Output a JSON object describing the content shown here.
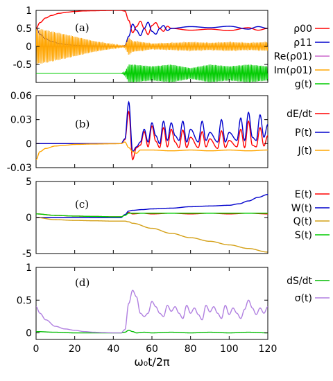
{
  "figure": {
    "xlabel": "ω₀t/2π",
    "xlim": [
      0,
      120
    ],
    "xticks": [
      "0",
      "20",
      "40",
      "60",
      "80",
      "100",
      "120"
    ]
  },
  "chart_data": [
    {
      "type": "line",
      "panel_label": "(a)",
      "ylim": [
        -1,
        1
      ],
      "yticks": [
        "1",
        "0.5",
        "0",
        "-0.5"
      ],
      "legend_placement": "right",
      "series": [
        {
          "name": "ρ00",
          "color": "#ff0000",
          "x": [
            0,
            2,
            5,
            8,
            12,
            16,
            20,
            25,
            30,
            35,
            40,
            44,
            46,
            48,
            50,
            52,
            54,
            56,
            58,
            60,
            62,
            64,
            66,
            68,
            70,
            80,
            90,
            100,
            110,
            115,
            120
          ],
          "y": [
            0.5,
            0.66,
            0.79,
            0.86,
            0.92,
            0.95,
            0.97,
            0.985,
            0.99,
            0.995,
            0.998,
            0.999,
            0.98,
            0.72,
            0.38,
            0.55,
            0.7,
            0.5,
            0.33,
            0.58,
            0.66,
            0.5,
            0.42,
            0.56,
            0.5,
            0.45,
            0.48,
            0.44,
            0.52,
            0.45,
            0.5
          ]
        },
        {
          "name": "ρ11",
          "color": "#0000cc",
          "x": [
            0,
            2,
            5,
            8,
            12,
            16,
            20,
            25,
            30,
            35,
            40,
            44,
            46,
            48,
            50,
            52,
            54,
            56,
            58,
            60,
            62,
            64,
            66,
            68,
            70,
            80,
            90,
            100,
            110,
            115,
            120
          ],
          "y": [
            0.5,
            0.34,
            0.21,
            0.14,
            0.08,
            0.05,
            0.03,
            0.015,
            0.01,
            0.005,
            0.002,
            0.001,
            0.02,
            0.28,
            0.62,
            0.45,
            0.3,
            0.5,
            0.67,
            0.42,
            0.34,
            0.5,
            0.58,
            0.44,
            0.5,
            0.55,
            0.52,
            0.56,
            0.48,
            0.55,
            0.5
          ]
        },
        {
          "name": "Re(ρ01)",
          "color": "#cc66cc",
          "x": [
            0,
            120
          ],
          "y": [
            0,
            0
          ]
        },
        {
          "name": "Im(ρ01)",
          "color": "#ffa500",
          "envelope": {
            "x": [
              0,
              5,
              10,
              20,
              30,
              40,
              44,
              46,
              48,
              50,
              55,
              60,
              70,
              80,
              90,
              100,
              110,
              120
            ],
            "amp": [
              0.5,
              0.46,
              0.4,
              0.28,
              0.15,
              0.06,
              0.03,
              0.03,
              0.25,
              0.15,
              0.12,
              0.08,
              0.1,
              0.12,
              0.1,
              0.12,
              0.1,
              0.12
            ]
          }
        },
        {
          "name": "g(t)",
          "color": "#00cc00",
          "baseline": -0.75,
          "envelope": {
            "x": [
              0,
              44,
              46,
              48,
              50,
              60,
              70,
              80,
              90,
              100,
              110,
              120
            ],
            "amp": [
              0,
              0,
              0.05,
              0.25,
              0.25,
              0.2,
              0.25,
              0.15,
              0.25,
              0.2,
              0.25,
              0.2
            ]
          }
        }
      ]
    },
    {
      "type": "line",
      "panel_label": "(b)",
      "ylim": [
        -0.03,
        0.06
      ],
      "yticks": [
        "0.06",
        "0.03",
        "0",
        "-0.03"
      ],
      "legend_placement": "right",
      "series": [
        {
          "name": "dE/dt",
          "color": "#ff0000",
          "x": [
            0,
            10,
            20,
            30,
            40,
            44,
            46,
            48,
            50,
            52,
            54,
            56,
            58,
            60,
            62,
            64,
            66,
            68,
            70,
            72,
            74,
            76,
            78,
            80,
            84,
            86,
            88,
            90,
            94,
            96,
            98,
            100,
            104,
            106,
            108,
            110,
            112,
            114,
            116,
            118,
            120
          ],
          "y": [
            0,
            0,
            0,
            0,
            0,
            0.0,
            0.005,
            0.04,
            -0.02,
            -0.005,
            -0.002,
            0.015,
            -0.004,
            0.022,
            0.003,
            -0.005,
            0.02,
            -0.004,
            0.018,
            0.002,
            -0.005,
            0.017,
            -0.005,
            0.008,
            -0.005,
            0.015,
            -0.004,
            0.006,
            -0.006,
            0.016,
            -0.005,
            0.004,
            -0.004,
            0.018,
            -0.005,
            0.028,
            -0.002,
            -0.004,
            0.02,
            -0.003,
            0.01
          ]
        },
        {
          "name": "P(t)",
          "color": "#0000cc",
          "x": [
            0,
            10,
            20,
            30,
            40,
            44,
            46,
            48,
            50,
            52,
            54,
            56,
            58,
            60,
            62,
            64,
            66,
            68,
            70,
            72,
            74,
            76,
            78,
            80,
            84,
            86,
            88,
            90,
            94,
            96,
            98,
            100,
            104,
            106,
            108,
            110,
            112,
            114,
            116,
            118,
            120
          ],
          "y": [
            0,
            0,
            0,
            0,
            0,
            0.0,
            0.006,
            0.052,
            -0.01,
            -0.004,
            0.002,
            0.018,
            0.002,
            0.026,
            0.01,
            0.0,
            0.028,
            0.004,
            0.026,
            0.01,
            0.004,
            0.028,
            0.002,
            0.018,
            0.002,
            0.028,
            0.004,
            0.014,
            0.002,
            0.03,
            0.002,
            0.014,
            0.004,
            0.032,
            0.004,
            0.039,
            0.008,
            0.004,
            0.036,
            0.008,
            0.024
          ]
        },
        {
          "name": "J(t)",
          "color": "#ffa500",
          "x": [
            0,
            2,
            5,
            10,
            15,
            20,
            30,
            40,
            44,
            46,
            48,
            50,
            52,
            54,
            60,
            70,
            80,
            90,
            100,
            110,
            120
          ],
          "y": [
            -0.02,
            -0.01,
            -0.006,
            -0.003,
            -0.002,
            -0.001,
            -0.0005,
            -0.0002,
            0.0,
            0.002,
            -0.005,
            -0.01,
            -0.012,
            -0.008,
            -0.008,
            -0.009,
            -0.008,
            -0.009,
            -0.008,
            -0.009,
            -0.008
          ]
        }
      ]
    },
    {
      "type": "line",
      "panel_label": "(c)",
      "ylim": [
        -5,
        5
      ],
      "yticks": [
        "5",
        "0",
        "-5"
      ],
      "legend_placement": "right",
      "series": [
        {
          "name": "E(t)",
          "color": "#ff0000",
          "x": [
            0,
            10,
            20,
            30,
            40,
            44,
            46,
            48,
            50,
            55,
            60,
            70,
            80,
            90,
            100,
            110,
            120
          ],
          "y": [
            0.5,
            0.3,
            0.2,
            0.15,
            0.1,
            0.1,
            0.3,
            0.7,
            0.5,
            0.6,
            0.5,
            0.6,
            0.5,
            0.6,
            0.5,
            0.6,
            0.5
          ]
        },
        {
          "name": "W(t)",
          "color": "#0000cc",
          "x": [
            0,
            10,
            20,
            30,
            40,
            44,
            46,
            48,
            50,
            55,
            60,
            70,
            80,
            90,
            100,
            105,
            110,
            115,
            120
          ],
          "y": [
            0,
            0,
            0,
            0,
            0,
            0,
            0.4,
            0.9,
            1.0,
            1.1,
            1.2,
            1.3,
            1.5,
            1.6,
            1.7,
            1.9,
            2.3,
            2.8,
            3.2
          ]
        },
        {
          "name": "Q(t)",
          "color": "#d4a017",
          "x": [
            0,
            10,
            20,
            30,
            40,
            44,
            46,
            48,
            50,
            60,
            70,
            80,
            90,
            100,
            110,
            120
          ],
          "y": [
            0,
            -0.3,
            -0.4,
            -0.45,
            -0.5,
            -0.5,
            -0.5,
            -0.6,
            -0.8,
            -1.5,
            -2.2,
            -2.8,
            -3.3,
            -3.8,
            -4.3,
            -4.8
          ]
        },
        {
          "name": "S(t)",
          "color": "#00cc00",
          "x": [
            0,
            10,
            20,
            30,
            40,
            44,
            46,
            48,
            50,
            55,
            60,
            70,
            80,
            90,
            100,
            110,
            120
          ],
          "y": [
            0.5,
            0.3,
            0.2,
            0.15,
            0.1,
            0.1,
            0.3,
            0.6,
            0.6,
            0.6,
            0.6,
            0.6,
            0.6,
            0.6,
            0.6,
            0.6,
            0.6
          ]
        }
      ]
    },
    {
      "type": "line",
      "panel_label": "(d)",
      "ylim": [
        -0.1,
        1
      ],
      "yticks": [
        "1",
        "0.5",
        "0"
      ],
      "legend_placement": "right",
      "series": [
        {
          "name": "dS/dt",
          "color": "#00bb00",
          "x": [
            0,
            10,
            20,
            30,
            40,
            44,
            46,
            48,
            50,
            52,
            56,
            60,
            70,
            80,
            90,
            100,
            110,
            120
          ],
          "y": [
            0.02,
            0.01,
            0.0,
            0.0,
            0.0,
            0.0,
            0.01,
            0.04,
            0.02,
            0.0,
            0.01,
            0.0,
            0.01,
            0.0,
            0.01,
            0.0,
            0.01,
            0.0
          ]
        },
        {
          "name": "σ(t)",
          "color": "#b07fe0",
          "x": [
            0,
            2,
            5,
            10,
            15,
            20,
            25,
            30,
            35,
            40,
            44,
            46,
            48,
            50,
            52,
            54,
            56,
            58,
            60,
            62,
            64,
            66,
            68,
            70,
            72,
            74,
            76,
            78,
            80,
            82,
            84,
            86,
            88,
            90,
            92,
            94,
            96,
            98,
            100,
            102,
            104,
            106,
            108,
            110,
            112,
            114,
            116,
            118,
            120
          ],
          "y": [
            0.4,
            0.3,
            0.2,
            0.1,
            0.06,
            0.04,
            0.02,
            0.01,
            0.005,
            0.0,
            0.0,
            0.05,
            0.45,
            0.65,
            0.55,
            0.3,
            0.25,
            0.3,
            0.48,
            0.4,
            0.3,
            0.25,
            0.42,
            0.33,
            0.4,
            0.3,
            0.22,
            0.42,
            0.3,
            0.38,
            0.28,
            0.2,
            0.42,
            0.32,
            0.4,
            0.3,
            0.22,
            0.42,
            0.28,
            0.38,
            0.3,
            0.22,
            0.36,
            0.5,
            0.38,
            0.28,
            0.38,
            0.3,
            0.4
          ]
        }
      ]
    }
  ]
}
